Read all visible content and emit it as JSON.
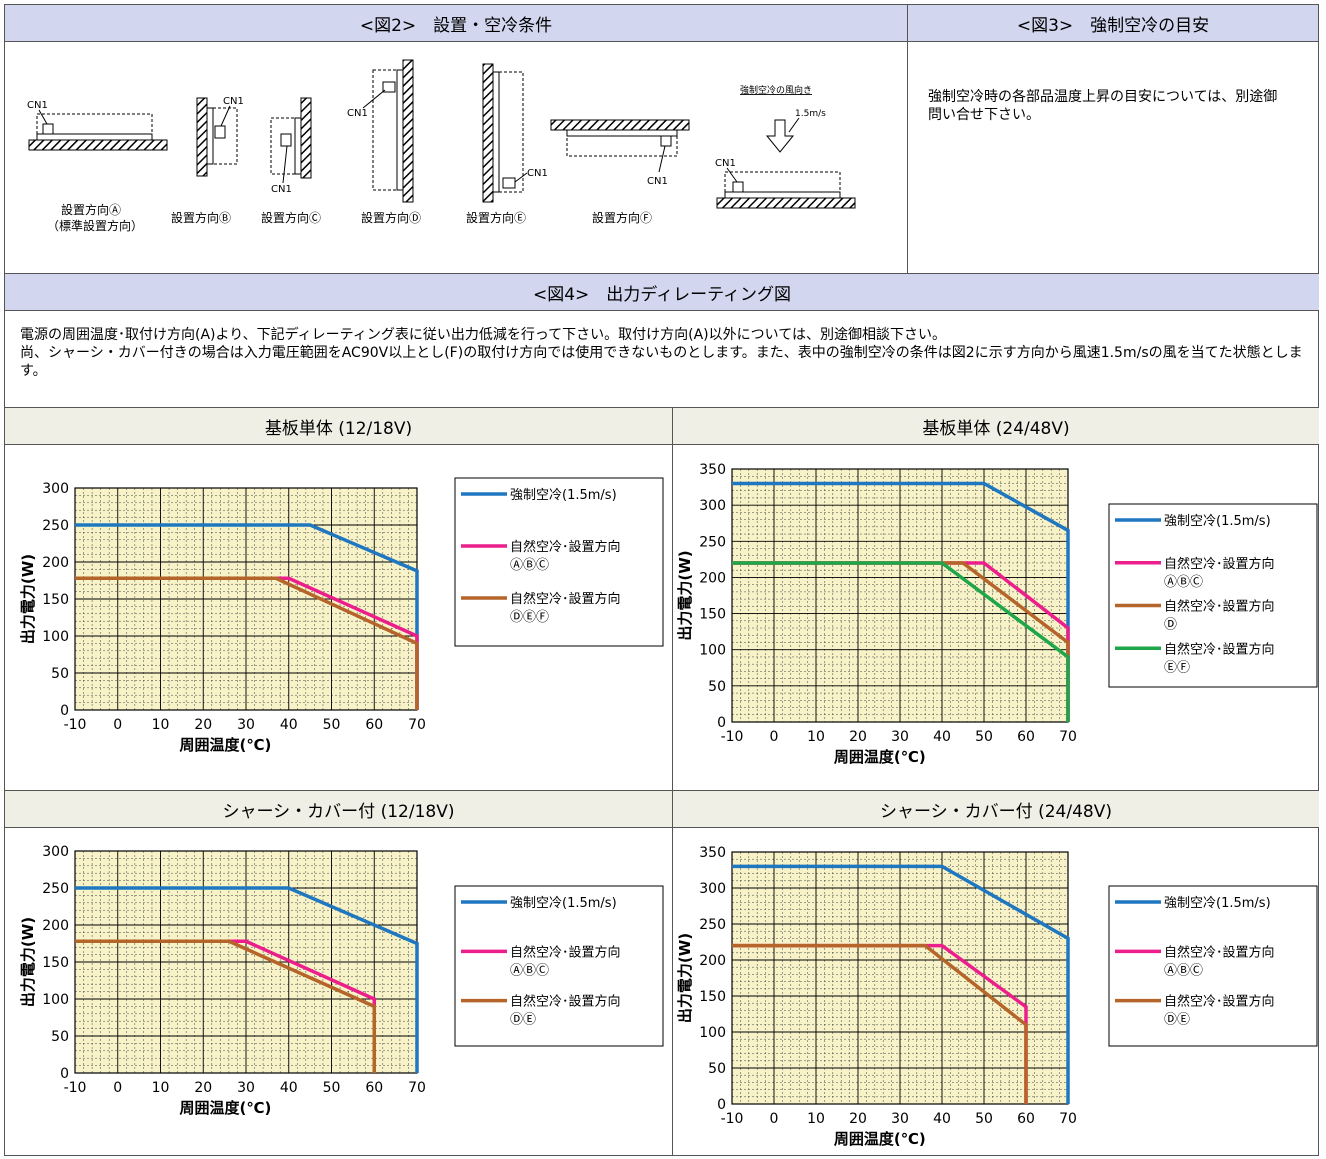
{
  "fig2": {
    "title": "<図2>　設置・空冷条件",
    "cn1": "CN1",
    "air_title": "強制空冷の風向き",
    "air_speed": "1.5m/s",
    "orientations": [
      {
        "label": "設置方向Ⓐ",
        "sub": "（標準設置方向）"
      },
      {
        "label": "設置方向Ⓑ",
        "sub": ""
      },
      {
        "label": "設置方向Ⓒ",
        "sub": ""
      },
      {
        "label": "設置方向Ⓓ",
        "sub": ""
      },
      {
        "label": "設置方向Ⓔ",
        "sub": ""
      },
      {
        "label": "設置方向Ⓕ",
        "sub": ""
      }
    ]
  },
  "fig3": {
    "title": "<図3>　強制空冷の目安",
    "text": "強制空冷時の各部品温度上昇の目安については、別途御問い合せ下さい。"
  },
  "fig4": {
    "title": "<図4>　出力ディレーティング図",
    "line1": "電源の周囲温度･取付け方向(A)より、下記ディレーティング表に従い出力低減を行って下さい。取付け方向(A)以外については、別途御相談下さい。",
    "line2": "尚、シャーシ・カバー付きの場合は入力電圧範囲をAC90V以上とし(F)の取付け方向では使用できないものとします。また、表中の強制空冷の条件は図2に示す方向から風速1.5m/sの風を当てた状態とします。"
  },
  "colors": {
    "blue": "#1f77c0",
    "magenta": "#ec1e8c",
    "brown": "#b5652a",
    "green": "#1fa64a",
    "plot_bg": "#f7f2c8",
    "header_bg": "#d2d6ee",
    "subheader_bg": "#efefe5"
  },
  "chart_data": [
    {
      "type": "line",
      "title": "基板単体 (12/18V)",
      "xlabel": "周囲温度(℃)",
      "ylabel": "出力電力(W)",
      "xlim": [
        -10,
        70
      ],
      "ylim": [
        0,
        300
      ],
      "xticks": [
        -10,
        0,
        10,
        20,
        30,
        40,
        50,
        60,
        70
      ],
      "yticks": [
        0,
        50,
        100,
        150,
        200,
        250,
        300
      ],
      "grid": true,
      "legend": "right",
      "series": [
        {
          "name": "強制空冷(1.5m/s)",
          "name2": "",
          "color": "blue",
          "x": [
            -10,
            45,
            70,
            70
          ],
          "y": [
            250,
            250,
            188,
            0
          ]
        },
        {
          "name": "自然空冷･設置方向",
          "name2": "ⒶⒷⒸ",
          "color": "magenta",
          "x": [
            -10,
            40,
            70,
            70
          ],
          "y": [
            178,
            178,
            100,
            0
          ]
        },
        {
          "name": "自然空冷･設置方向",
          "name2": "ⒹⒺⒻ",
          "color": "brown",
          "x": [
            -10,
            37,
            70,
            70
          ],
          "y": [
            178,
            178,
            90,
            0
          ]
        }
      ]
    },
    {
      "type": "line",
      "title": "基板単体 (24/48V)",
      "xlabel": "周囲温度(℃)",
      "ylabel": "出力電力(W)",
      "xlim": [
        -10,
        70
      ],
      "ylim": [
        0,
        350
      ],
      "xticks": [
        -10,
        0,
        10,
        20,
        30,
        40,
        50,
        60,
        70
      ],
      "yticks": [
        0,
        50,
        100,
        150,
        200,
        250,
        300,
        350
      ],
      "grid": true,
      "legend": "right",
      "series": [
        {
          "name": "強制空冷(1.5m/s)",
          "name2": "",
          "color": "blue",
          "x": [
            -10,
            50,
            70,
            70
          ],
          "y": [
            330,
            330,
            265,
            0
          ]
        },
        {
          "name": "自然空冷･設置方向",
          "name2": "ⒶⒷⒸ",
          "color": "magenta",
          "x": [
            -10,
            50,
            70,
            70
          ],
          "y": [
            220,
            220,
            130,
            0
          ]
        },
        {
          "name": "自然空冷･設置方向",
          "name2": "Ⓓ",
          "color": "brown",
          "x": [
            -10,
            45,
            70,
            70
          ],
          "y": [
            220,
            220,
            110,
            0
          ]
        },
        {
          "name": "自然空冷･設置方向",
          "name2": "ⒺⒻ",
          "color": "green",
          "x": [
            -10,
            40,
            70,
            70
          ],
          "y": [
            220,
            220,
            90,
            0
          ]
        }
      ]
    },
    {
      "type": "line",
      "title": "シャーシ・カバー付 (12/18V)",
      "xlabel": "周囲温度(℃)",
      "ylabel": "出力電力(W)",
      "xlim": [
        -10,
        70
      ],
      "ylim": [
        0,
        300
      ],
      "xticks": [
        -10,
        0,
        10,
        20,
        30,
        40,
        50,
        60,
        70
      ],
      "yticks": [
        0,
        50,
        100,
        150,
        200,
        250,
        300
      ],
      "grid": true,
      "legend": "right",
      "series": [
        {
          "name": "強制空冷(1.5m/s)",
          "name2": "",
          "color": "blue",
          "x": [
            -10,
            40,
            70,
            70
          ],
          "y": [
            250,
            250,
            175,
            0
          ]
        },
        {
          "name": "自然空冷･設置方向",
          "name2": "ⒶⒷⒸ",
          "color": "magenta",
          "x": [
            -10,
            30,
            60,
            60
          ],
          "y": [
            178,
            178,
            100,
            0
          ]
        },
        {
          "name": "自然空冷･設置方向",
          "name2": "ⒹⒺ",
          "color": "brown",
          "x": [
            -10,
            26,
            60,
            60
          ],
          "y": [
            178,
            178,
            90,
            0
          ]
        }
      ]
    },
    {
      "type": "line",
      "title": "シャーシ・カバー付 (24/48V)",
      "xlabel": "周囲温度(℃)",
      "ylabel": "出力電力(W)",
      "xlim": [
        -10,
        70
      ],
      "ylim": [
        0,
        350
      ],
      "xticks": [
        -10,
        0,
        10,
        20,
        30,
        40,
        50,
        60,
        70
      ],
      "yticks": [
        0,
        50,
        100,
        150,
        200,
        250,
        300,
        350
      ],
      "grid": true,
      "legend": "right",
      "series": [
        {
          "name": "強制空冷(1.5m/s)",
          "name2": "",
          "color": "blue",
          "x": [
            -10,
            40,
            70,
            70
          ],
          "y": [
            330,
            330,
            230,
            0
          ]
        },
        {
          "name": "自然空冷･設置方向",
          "name2": "ⒶⒷⒸ",
          "color": "magenta",
          "x": [
            -10,
            40,
            60,
            60
          ],
          "y": [
            220,
            220,
            135,
            0
          ]
        },
        {
          "name": "自然空冷･設置方向",
          "name2": "ⒹⒺ",
          "color": "brown",
          "x": [
            -10,
            36,
            60,
            60
          ],
          "y": [
            220,
            220,
            110,
            0
          ]
        }
      ]
    }
  ]
}
